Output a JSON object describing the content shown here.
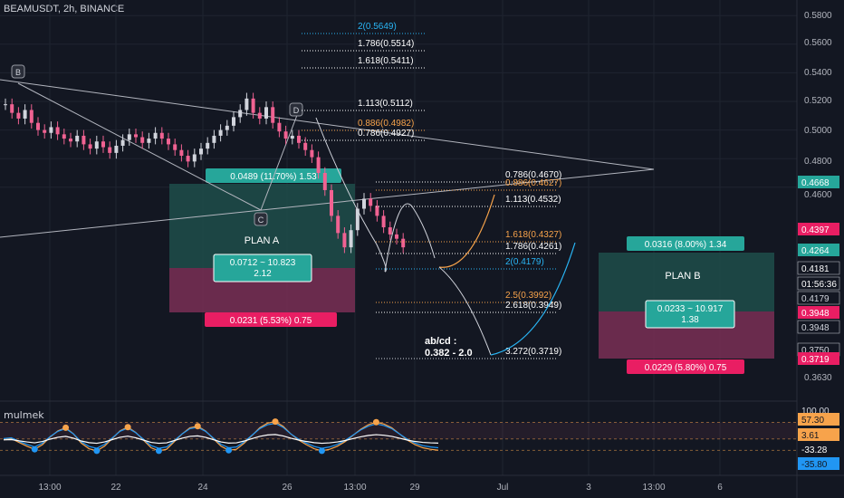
{
  "header": {
    "symbol_line": "BEAMUSDT, 2h, BINANCE"
  },
  "oscillator": {
    "title": "mulmek"
  },
  "colors": {
    "bg": "#131722",
    "up": "#d1d4dc",
    "down": "#f06292",
    "teal": "#1e4d4a",
    "pink": "#7a2f55",
    "badge_teal": "#26a69a",
    "badge_pink": "#e91e63",
    "fib": "#d1d4dc",
    "fib_orange": "#f7a34b",
    "fib_blue": "#29b6f6"
  },
  "chart_data": {
    "type": "candlestick",
    "price_axis": {
      "ticks": [
        "0.5800",
        "0.5600",
        "0.5400",
        "0.5200",
        "0.5000",
        "0.4800",
        "0.4600",
        "0.3630"
      ],
      "price_labels": [
        {
          "text": "0.4668",
          "color": "#26a69a"
        },
        {
          "text": "0.4397",
          "color": "#e91e63"
        },
        {
          "text": "0.4264",
          "color": "#26a69a"
        },
        {
          "text": "0.4181",
          "color": "#ffffff"
        },
        {
          "text": "01:56:36",
          "color": "#ffffff"
        },
        {
          "text": "0.4179",
          "color": "#d1d4dc"
        },
        {
          "text": "0.3948",
          "color": "#e91e63"
        },
        {
          "text": "0.3948",
          "color": "#d1d4dc"
        },
        {
          "text": "0.3750",
          "color": "#d1d4dc"
        },
        {
          "text": "0.3719",
          "color": "#e91e63"
        }
      ]
    },
    "time_axis": [
      "13:00",
      "22",
      "24",
      "26",
      "13:00",
      "29",
      "Jul",
      "3",
      "13:00",
      "6"
    ],
    "pattern_labels": [
      "B",
      "C",
      "D"
    ],
    "fib_upper": [
      {
        "text": "2(0.5649)",
        "color": "blue"
      },
      {
        "text": "1.786(0.5514)",
        "color": "white"
      },
      {
        "text": "1.618(0.5411)",
        "color": "white"
      },
      {
        "text": "1.113(0.5112)",
        "color": "white"
      },
      {
        "text": "0.886(0.4982)",
        "color": "orange"
      },
      {
        "text": "0.786(0.4927)",
        "color": "white"
      }
    ],
    "fib_lower": [
      {
        "text": "0.786(0.4670)",
        "color": "white"
      },
      {
        "text": "0.886(0.4627)",
        "color": "orange"
      },
      {
        "text": "1.113(0.4532)",
        "color": "white"
      },
      {
        "text": "1.618(0.4327)",
        "color": "orange"
      },
      {
        "text": "1.786(0.4261)",
        "color": "white"
      },
      {
        "text": "2(0.4179)",
        "color": "blue"
      },
      {
        "text": "2.5(0.3992)",
        "color": "orange"
      },
      {
        "text": "2.618(0.3949)",
        "color": "white"
      },
      {
        "text": "3.272(0.3719)",
        "color": "white"
      }
    ],
    "abcd_note": [
      "ab/cd :",
      "0.382 - 2.0"
    ],
    "plan_a": {
      "title": "PLAN A",
      "target": "0.0489 (11.70%) 1.53",
      "ratio_line1": "0.0712 ~ 10.823",
      "ratio_line2": "2.12",
      "stop": "0.0231 (5.53%) 0.75"
    },
    "plan_b": {
      "title": "PLAN B",
      "target": "0.0316 (8.00%) 1.34",
      "ratio_line1": "0.0233 ~ 10.917",
      "ratio_line2": "1.38",
      "stop": "0.0229 (5.80%) 0.75"
    },
    "osc_axis": [
      {
        "text": "100.00",
        "color": "#d1d4dc"
      },
      {
        "text": "57.30",
        "color": "#f7a34b"
      },
      {
        "text": "3.61",
        "color": "#f7a34b"
      },
      {
        "text": "-33.28",
        "color": "#ffffff"
      },
      {
        "text": "-35.80",
        "color": "#2196f3"
      }
    ],
    "close_series": [
      0.518,
      0.512,
      0.508,
      0.514,
      0.505,
      0.5,
      0.498,
      0.502,
      0.497,
      0.494,
      0.492,
      0.496,
      0.49,
      0.487,
      0.492,
      0.488,
      0.484,
      0.489,
      0.493,
      0.497,
      0.495,
      0.491,
      0.494,
      0.498,
      0.494,
      0.49,
      0.486,
      0.482,
      0.478,
      0.483,
      0.487,
      0.491,
      0.496,
      0.5,
      0.503,
      0.509,
      0.514,
      0.522,
      0.512,
      0.508,
      0.516,
      0.505,
      0.499,
      0.494,
      0.496,
      0.491,
      0.486,
      0.481,
      0.47,
      0.458,
      0.44,
      0.428,
      0.418,
      0.43,
      0.445,
      0.452,
      0.447,
      0.44,
      0.432,
      0.427,
      0.424,
      0.418
    ],
    "oscillator_series": [
      2,
      5,
      -8,
      -20,
      -30,
      -15,
      10,
      30,
      40,
      20,
      -10,
      -28,
      -35,
      -20,
      5,
      30,
      42,
      25,
      0,
      -25,
      -35,
      -30,
      -5,
      20,
      40,
      45,
      30,
      5,
      -20,
      -33,
      -30,
      -10,
      15,
      40,
      55,
      60,
      45,
      20,
      0,
      -15,
      -28,
      -35,
      -30,
      -20,
      -5,
      15,
      35,
      50,
      58,
      52,
      40,
      20,
      0,
      -15,
      -25,
      -30,
      -33
    ]
  }
}
